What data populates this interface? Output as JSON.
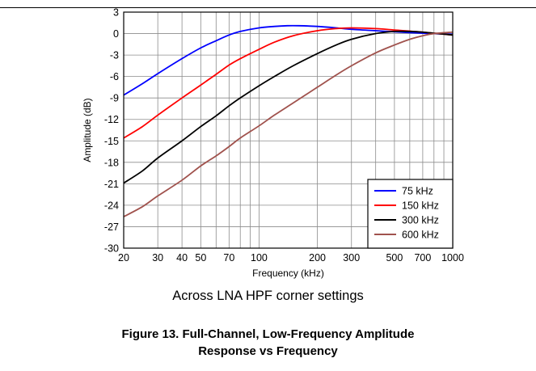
{
  "chart_data": {
    "type": "line",
    "x_scale": "log",
    "xlabel": "Frequency (kHz)",
    "ylabel": "Amplitude (dB)",
    "xlim": [
      20,
      1000
    ],
    "ylim": [
      -30,
      3
    ],
    "grid": true,
    "legend_position": "bottom-right",
    "x_ticks": [
      20,
      30,
      40,
      50,
      70,
      100,
      200,
      300,
      500,
      700,
      1000
    ],
    "x_tick_labels": [
      "20",
      "30",
      "40",
      "50",
      "70",
      "100",
      "200",
      "300",
      "500",
      "700",
      "1000"
    ],
    "x_minor_gridlines": [
      60,
      80,
      90,
      400,
      600,
      800,
      900
    ],
    "y_ticks": [
      3,
      0,
      -3,
      -6,
      -9,
      -12,
      -15,
      -18,
      -21,
      -24,
      -27,
      -30
    ],
    "y_tick_labels": [
      "3",
      "0",
      "-3",
      "-6",
      "-9",
      "-12",
      "-15",
      "-18",
      "-21",
      "-24",
      "-27",
      "-30"
    ],
    "series": [
      {
        "name": "75 kHz",
        "color": "#0000ff",
        "points": [
          [
            20,
            -8.6
          ],
          [
            25,
            -7.0
          ],
          [
            30,
            -5.6
          ],
          [
            40,
            -3.5
          ],
          [
            50,
            -2.0
          ],
          [
            60,
            -1.0
          ],
          [
            70,
            -0.2
          ],
          [
            80,
            0.3
          ],
          [
            100,
            0.8
          ],
          [
            120,
            1.0
          ],
          [
            140,
            1.1
          ],
          [
            160,
            1.1
          ],
          [
            200,
            1.0
          ],
          [
            250,
            0.8
          ],
          [
            300,
            0.6
          ],
          [
            400,
            0.4
          ],
          [
            500,
            0.25
          ],
          [
            700,
            0.05
          ],
          [
            1000,
            -0.1
          ]
        ]
      },
      {
        "name": "150 kHz",
        "color": "#ff0000",
        "points": [
          [
            20,
            -14.6
          ],
          [
            25,
            -13.0
          ],
          [
            30,
            -11.4
          ],
          [
            40,
            -9.0
          ],
          [
            50,
            -7.2
          ],
          [
            60,
            -5.7
          ],
          [
            70,
            -4.4
          ],
          [
            80,
            -3.5
          ],
          [
            100,
            -2.2
          ],
          [
            120,
            -1.2
          ],
          [
            150,
            -0.3
          ],
          [
            200,
            0.4
          ],
          [
            250,
            0.7
          ],
          [
            300,
            0.8
          ],
          [
            400,
            0.7
          ],
          [
            500,
            0.5
          ],
          [
            700,
            0.2
          ],
          [
            1000,
            -0.2
          ]
        ]
      },
      {
        "name": "300 kHz",
        "color": "#000000",
        "points": [
          [
            20,
            -20.9
          ],
          [
            25,
            -19.2
          ],
          [
            30,
            -17.4
          ],
          [
            40,
            -15.0
          ],
          [
            50,
            -13.0
          ],
          [
            60,
            -11.5
          ],
          [
            70,
            -10.1
          ],
          [
            80,
            -9.0
          ],
          [
            100,
            -7.3
          ],
          [
            120,
            -6.0
          ],
          [
            150,
            -4.5
          ],
          [
            200,
            -2.8
          ],
          [
            250,
            -1.6
          ],
          [
            300,
            -0.8
          ],
          [
            400,
            0.0
          ],
          [
            500,
            0.3
          ],
          [
            600,
            0.3
          ],
          [
            700,
            0.2
          ],
          [
            1000,
            -0.2
          ]
        ]
      },
      {
        "name": "600 kHz",
        "color": "#a0524d",
        "points": [
          [
            20,
            -25.6
          ],
          [
            25,
            -24.2
          ],
          [
            30,
            -22.7
          ],
          [
            40,
            -20.5
          ],
          [
            50,
            -18.5
          ],
          [
            60,
            -17.1
          ],
          [
            70,
            -15.8
          ],
          [
            80,
            -14.6
          ],
          [
            100,
            -12.9
          ],
          [
            120,
            -11.4
          ],
          [
            150,
            -9.7
          ],
          [
            200,
            -7.5
          ],
          [
            250,
            -5.8
          ],
          [
            300,
            -4.5
          ],
          [
            400,
            -2.7
          ],
          [
            500,
            -1.6
          ],
          [
            600,
            -0.8
          ],
          [
            700,
            -0.3
          ],
          [
            800,
            0.0
          ],
          [
            1000,
            0.2
          ]
        ]
      }
    ]
  },
  "subtitle": "Across LNA HPF corner settings",
  "caption_line1": "Figure 13. Full-Channel, Low-Frequency Amplitude",
  "caption_line2": "Response vs Frequency"
}
